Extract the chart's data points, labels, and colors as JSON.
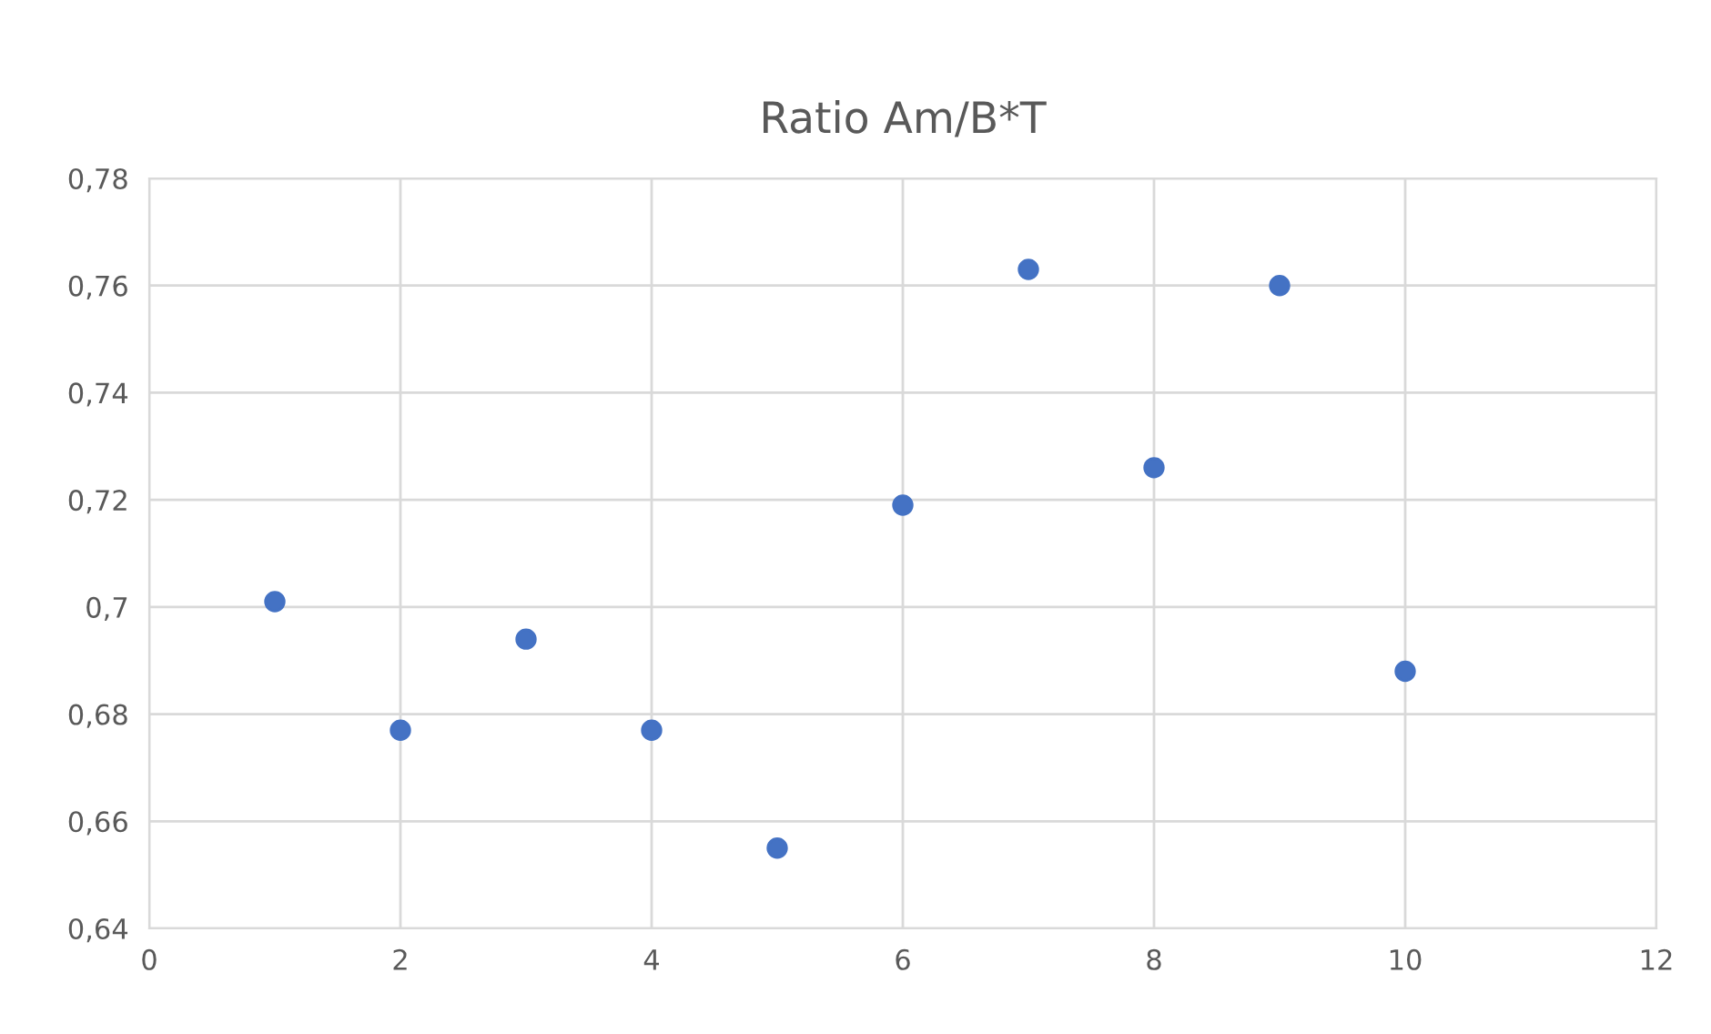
{
  "chart_data": {
    "type": "scatter",
    "title": "Ratio Am/B*T",
    "x": [
      1,
      2,
      3,
      4,
      5,
      6,
      7,
      8,
      9,
      10
    ],
    "series": [
      {
        "color": "#4472c4",
        "values": [
          0.701,
          0.677,
          0.694,
          0.677,
          0.655,
          0.719,
          0.763,
          0.726,
          0.76,
          0.688
        ]
      }
    ],
    "xlim": [
      0,
      12
    ],
    "xticks": [
      0,
      2,
      4,
      6,
      8,
      10,
      12
    ],
    "ylim": [
      0.64,
      0.78
    ],
    "yticks": [
      {
        "value": 0.64,
        "label": "0,64"
      },
      {
        "value": 0.66,
        "label": "0,66"
      },
      {
        "value": 0.68,
        "label": "0,68"
      },
      {
        "value": 0.7,
        "label": "0,7"
      },
      {
        "value": 0.72,
        "label": "0,72"
      },
      {
        "value": 0.74,
        "label": "0,74"
      },
      {
        "value": 0.76,
        "label": "0,76"
      },
      {
        "value": 0.78,
        "label": "0,78"
      }
    ],
    "grid": true,
    "marker": "circle"
  }
}
